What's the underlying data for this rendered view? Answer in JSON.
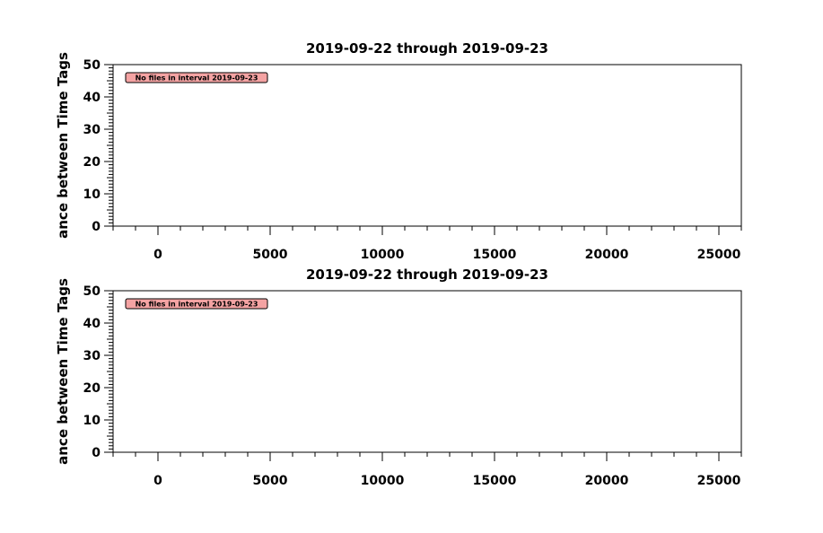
{
  "chart_data": [
    {
      "type": "scatter",
      "title": "2019-09-22 through 2019-09-23",
      "ylabel": "ance between Time Tags",
      "xlabel": "",
      "xlim": [
        -2000,
        26000
      ],
      "ylim": [
        0,
        50
      ],
      "x_ticks": [
        0,
        5000,
        10000,
        15000,
        20000,
        25000
      ],
      "y_ticks": [
        0,
        10,
        20,
        30,
        40,
        50
      ],
      "series": [],
      "annotation": "No files in interval 2019-09-23",
      "annotation_color": "#f4a3a3"
    },
    {
      "type": "scatter",
      "title": "2019-09-22 through 2019-09-23",
      "ylabel": "ance between Time Tags",
      "xlabel": "",
      "xlim": [
        -2000,
        26000
      ],
      "ylim": [
        0,
        50
      ],
      "x_ticks": [
        0,
        5000,
        10000,
        15000,
        20000,
        25000
      ],
      "y_ticks": [
        0,
        10,
        20,
        30,
        40,
        50
      ],
      "series": [],
      "annotation": "No files in interval 2019-09-23",
      "annotation_color": "#f4a3a3"
    }
  ]
}
